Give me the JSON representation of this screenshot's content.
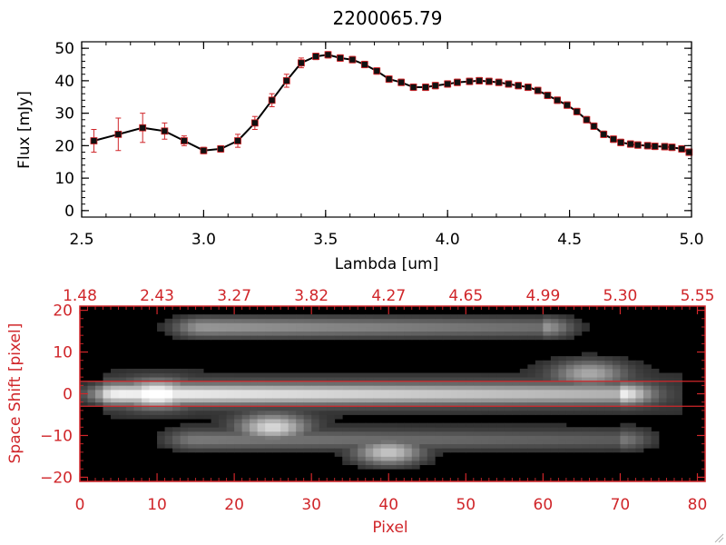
{
  "colors": {
    "red": "#d0262a",
    "black": "#000000",
    "background": "#ffffff"
  },
  "chart_data": [
    {
      "type": "line",
      "title": "2200065.79",
      "xlabel": "Lambda [um]",
      "ylabel": "Flux [mJy]",
      "xlim": [
        2.5,
        5.0
      ],
      "ylim": [
        -2,
        52
      ],
      "x_ticks": [
        2.5,
        3.0,
        3.5,
        4.0,
        4.5,
        5.0
      ],
      "x_tick_labels": [
        "2.5",
        "3.0",
        "3.5",
        "4.0",
        "4.5",
        "5.0"
      ],
      "y_ticks": [
        0,
        10,
        20,
        30,
        40,
        50
      ],
      "y_tick_labels": [
        "0",
        "10",
        "20",
        "30",
        "40",
        "50"
      ],
      "series": [
        {
          "name": "flux",
          "x": [
            2.55,
            2.65,
            2.75,
            2.84,
            2.92,
            3.0,
            3.07,
            3.14,
            3.21,
            3.28,
            3.34,
            3.4,
            3.46,
            3.51,
            3.56,
            3.61,
            3.66,
            3.71,
            3.76,
            3.81,
            3.86,
            3.91,
            3.95,
            4.0,
            4.04,
            4.09,
            4.13,
            4.17,
            4.21,
            4.25,
            4.29,
            4.33,
            4.37,
            4.41,
            4.45,
            4.49,
            4.53,
            4.57,
            4.6,
            4.64,
            4.68,
            4.71,
            4.75,
            4.78,
            4.82,
            4.85,
            4.89,
            4.92,
            4.96,
            4.99
          ],
          "y": [
            21.5,
            23.5,
            25.5,
            24.5,
            21.5,
            18.5,
            19.0,
            21.5,
            27.0,
            34.0,
            40.0,
            45.5,
            47.5,
            48.0,
            47.0,
            46.5,
            45.0,
            43.0,
            40.5,
            39.5,
            38.0,
            38.0,
            38.5,
            39.0,
            39.5,
            39.8,
            40.0,
            39.8,
            39.5,
            39.0,
            38.5,
            38.0,
            37.0,
            35.5,
            34.0,
            32.5,
            30.5,
            28.0,
            26.0,
            23.5,
            22.0,
            21.0,
            20.5,
            20.2,
            20.0,
            19.8,
            19.7,
            19.5,
            19.0,
            18.0
          ],
          "err": [
            3.5,
            5.0,
            4.5,
            2.5,
            1.5,
            1.0,
            1.0,
            2.0,
            2.0,
            2.0,
            2.0,
            1.5,
            1.0,
            1.0,
            1.0,
            1.0,
            1.0,
            1.0,
            1.0,
            1.0,
            1.0,
            1.0,
            1.0,
            1.0,
            1.0,
            1.0,
            1.0,
            1.0,
            1.0,
            1.0,
            1.0,
            1.0,
            1.0,
            1.0,
            1.0,
            1.0,
            1.0,
            1.0,
            1.0,
            1.0,
            1.0,
            1.0,
            1.0,
            1.0,
            1.0,
            1.0,
            1.0,
            1.0,
            1.0,
            1.0
          ]
        }
      ]
    },
    {
      "type": "heatmap",
      "xlabel": "Pixel",
      "ylabel": "Space Shift [pixel]",
      "xlim": [
        0,
        81
      ],
      "ylim": [
        -21,
        21
      ],
      "x_ticks": [
        0,
        10,
        20,
        30,
        40,
        50,
        60,
        70,
        80
      ],
      "x_tick_labels": [
        "0",
        "10",
        "20",
        "30",
        "40",
        "50",
        "60",
        "70",
        "80"
      ],
      "y_ticks": [
        -20,
        -10,
        0,
        10,
        20
      ],
      "y_tick_labels": [
        "−20",
        "−10",
        "0",
        "10",
        "20"
      ],
      "top_ticks": [
        0,
        10,
        20,
        30,
        40,
        50,
        60,
        70,
        80
      ],
      "top_tick_labels": [
        "1.48",
        "2.43",
        "3.27",
        "3.82",
        "4.27",
        "4.65",
        "4.99",
        "5.30",
        "5.55"
      ],
      "extraction_window": [
        -3,
        3
      ],
      "features": [
        {
          "name": "main trace",
          "x": [
            5,
            70
          ],
          "y": 0,
          "brightness": 0.85
        },
        {
          "name": "bright peak",
          "x": 10,
          "y": 0,
          "brightness": 1.0
        },
        {
          "name": "upper trace",
          "x": [
            16,
            60
          ],
          "y": 16,
          "brightness": 0.55
        },
        {
          "name": "lower-left source",
          "x": 25,
          "y": -8,
          "brightness": 0.8
        },
        {
          "name": "lower trace",
          "x": [
            15,
            70
          ],
          "y": -11,
          "brightness": 0.4
        },
        {
          "name": "lower blob",
          "x": 40,
          "y": -14,
          "brightness": 0.75
        },
        {
          "name": "right blob",
          "x": 66,
          "y": 5,
          "brightness": 0.55
        }
      ]
    }
  ]
}
